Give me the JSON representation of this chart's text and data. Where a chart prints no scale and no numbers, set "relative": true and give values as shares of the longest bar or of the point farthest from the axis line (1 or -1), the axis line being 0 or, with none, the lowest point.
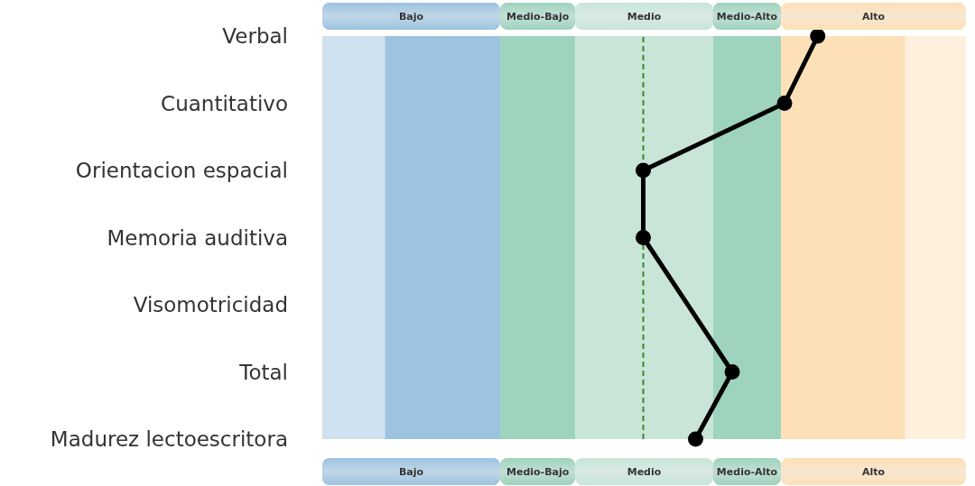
{
  "chart_data": {
    "type": "line",
    "orientation": "horizontal",
    "relative": true,
    "marker": "circle",
    "line_style": "solid",
    "color": "#000000",
    "categories": [
      "Verbal",
      "Cuantitativo",
      "Orientacion espacial",
      "Memoria auditiva",
      "Visomotricidad",
      "Total",
      "Madurez lectoescritora"
    ],
    "values": [
      1,
      0.81,
      0,
      0,
      null,
      0.51,
      0.3
    ],
    "bands": [
      {
        "axis": "x",
        "from": -1.84,
        "to": -0.82,
        "label": "Bajo",
        "color": "#9cc3e0"
      },
      {
        "axis": "x",
        "from": -0.82,
        "to": -0.39,
        "label": "Medio-Bajo",
        "color": "#9ed3bd"
      },
      {
        "axis": "x",
        "from": -0.39,
        "to": 0.4,
        "label": "Medio",
        "color": "#c8e5d8"
      },
      {
        "axis": "x",
        "from": 0.4,
        "to": 0.79,
        "label": "Medio-Alto",
        "color": "#9ed3bd"
      },
      {
        "axis": "x",
        "from": 0.79,
        "to": 1.85,
        "label": "Alto",
        "color": "#fde0b8"
      },
      {
        "axis": "x",
        "from": -1.84,
        "to": -1.48,
        "color": "#cfe0ee"
      },
      {
        "axis": "x",
        "from": 1.5,
        "to": 1.85,
        "color": "#fef0dc"
      }
    ],
    "ref_lines": [
      {
        "axis": "x",
        "value": 0,
        "color": "#3d8a2a",
        "line_style": "dashed"
      }
    ]
  }
}
